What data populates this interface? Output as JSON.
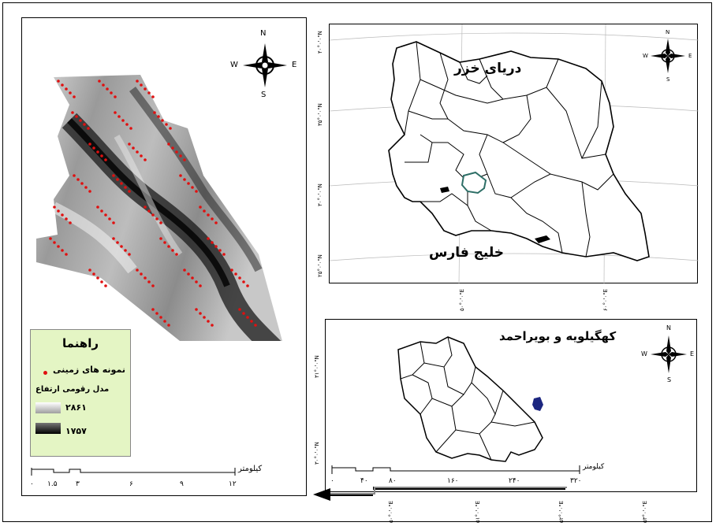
{
  "compass": {
    "n": "N",
    "s": "S",
    "e": "E",
    "w": "W"
  },
  "left_map": {
    "legend": {
      "title": "راهنما",
      "points_label": "نمونه های زمینی",
      "dem_label": "مدل رقومی ارتفاع",
      "high": "۲۸۶۱",
      "low": "۱۷۵۷"
    },
    "scale_unit": "کیلومتر",
    "scale_ticks": [
      "۰",
      "۱.۵",
      "۳",
      "۶",
      "۹",
      "۱۲"
    ]
  },
  "iran_map": {
    "caspian_label": "دریای خزر",
    "gulf_label": "خلیج فارس",
    "lat_labels": [
      "۴۰°۰'۰\"N",
      "۳۵°۰'۰\"N",
      "۳۰°۰'۰\"N",
      "۲۵°۰'۰\"N"
    ],
    "lon_labels": [
      "۵۰°۰'۰\"E",
      "۶۰°۰'۰\"E"
    ]
  },
  "province_map": {
    "title": "کهگیلویه و بویراحمد",
    "lat_labels": [
      "۳۱°۰'۰\"N",
      "۳۰°۰'۰\"N"
    ],
    "lon_labels": [
      "۵۰°۰'۰\"E",
      "۵۱°۰'۰\"E",
      "۵۲°۰'۰\"E",
      "۵۳°۰'۰\"E"
    ],
    "scale_unit": "کیلومتر",
    "scale_ticks": [
      "۰",
      "۴۰",
      "۸۰",
      "۱۶۰",
      "۲۴۰",
      "۳۲۰"
    ]
  }
}
